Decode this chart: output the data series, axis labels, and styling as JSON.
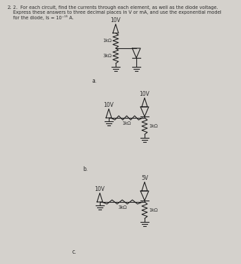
{
  "background_color": "#d4d1cc",
  "text_color": "#2a2a2a",
  "line_color": "#1a1a1a",
  "fig_width": 3.5,
  "fig_height": 3.83,
  "dpi": 100,
  "header": "2.  For each circuit, find the currents through each element, as well as the diode voltage.",
  "header2": "Express these answers to three decimal places in V or mA, and use the exponential model",
  "header3": "for the diode, Is = 10⁻¹⁵ A."
}
